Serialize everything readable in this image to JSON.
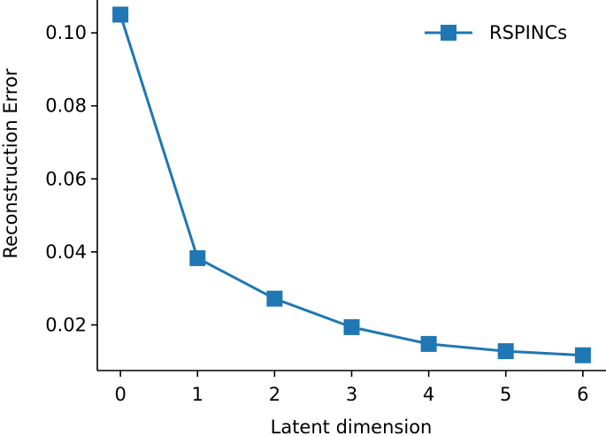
{
  "chart_data": {
    "type": "line",
    "title": "",
    "xlabel": "Latent dimension",
    "ylabel": "Reconstruction Error",
    "x": [
      0,
      1,
      2,
      3,
      4,
      5,
      6
    ],
    "series": [
      {
        "name": "RSPINCs",
        "values": [
          0.105,
          0.0383,
          0.0272,
          0.0194,
          0.0148,
          0.0128,
          0.0117
        ],
        "color": "#1f77b4",
        "marker": "square"
      }
    ],
    "xticks": [
      "0",
      "1",
      "2",
      "3",
      "4",
      "5",
      "6"
    ],
    "yticks": [
      "0.02",
      "0.04",
      "0.06",
      "0.08",
      "0.10"
    ],
    "xlim": [
      -0.3,
      6.3
    ],
    "ylim": [
      0.0075,
      0.109
    ],
    "grid": false,
    "legend_position": "top-right"
  }
}
